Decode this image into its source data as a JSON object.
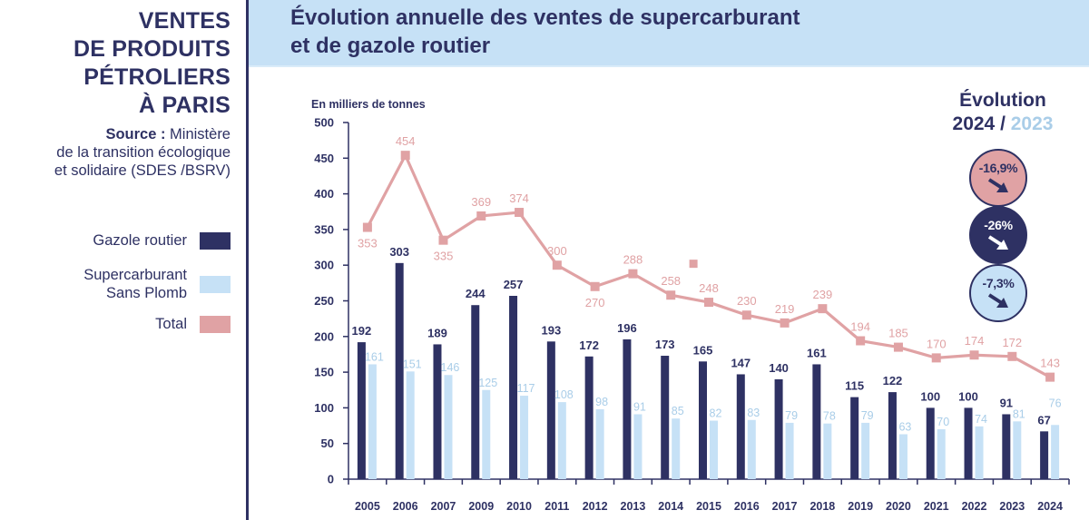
{
  "sidebar": {
    "title_lines": [
      "VENTES",
      "DE PRODUITS",
      "PÉTROLIERS",
      "À PARIS"
    ],
    "source_label": "Source :",
    "source_lines": [
      " Ministère",
      "de la transition écologique",
      "et solidaire (SDES /BSRV)"
    ],
    "legend": [
      {
        "label_lines": [
          "Gazole routier"
        ],
        "color": "#2e3163"
      },
      {
        "label_lines": [
          "Supercarburant",
          "Sans Plomb"
        ],
        "color": "#c6e1f6"
      },
      {
        "label_lines": [
          "Total"
        ],
        "color": "#e0a2a4"
      }
    ]
  },
  "header": {
    "title_lines": [
      "Évolution annuelle des ventes de supercarburant",
      "et de gazole routier"
    ]
  },
  "evolution": {
    "title": "Évolution",
    "year_current": "2024",
    "separator": " / ",
    "year_previous": "2023",
    "badges": [
      {
        "name": "total",
        "value": "-16,9%",
        "bg": "#e0a2a4",
        "text_color": "#2e3163",
        "arrow_color": "#2e3163",
        "icon": "arrow-down-right-icon"
      },
      {
        "name": "gazole",
        "value": "-26%",
        "bg": "#2e3163",
        "text_color": "#ffffff",
        "arrow_color": "#ffffff",
        "icon": "arrow-down-right-icon"
      },
      {
        "name": "supercarburant",
        "value": "-7,3%",
        "bg": "#c6e1f6",
        "text_color": "#2e3163",
        "arrow_color": "#2e3163",
        "icon": "arrow-down-right-icon"
      }
    ]
  },
  "colors": {
    "navy": "#2e3163",
    "light_blue": "#c6e1f6",
    "pink": "#e0a2a4",
    "light_blue_label": "#a9cde8"
  },
  "chart_data": {
    "type": "bar",
    "title": "Évolution annuelle des ventes de supercarburant et de gazole routier",
    "ylabel": "En milliers de tonnes",
    "xlabel": "",
    "ylim": [
      0,
      500
    ],
    "yticks": [
      0,
      50,
      100,
      150,
      200,
      250,
      300,
      350,
      400,
      450,
      500
    ],
    "grid": false,
    "legend_position": "left-sidebar",
    "categories": [
      "2005",
      "2006",
      "2007",
      "2009",
      "2010",
      "2011",
      "2012",
      "2013",
      "2014",
      "2015",
      "2016",
      "2017",
      "2018",
      "2019",
      "2020",
      "2021",
      "2022",
      "2023",
      "2024"
    ],
    "series": [
      {
        "name": "Gazole routier",
        "type": "bar",
        "color": "#2e3163",
        "values": [
          192,
          303,
          189,
          244,
          257,
          193,
          172,
          196,
          173,
          165,
          147,
          140,
          161,
          115,
          122,
          100,
          100,
          91,
          67
        ]
      },
      {
        "name": "Supercarburant Sans Plomb",
        "type": "bar",
        "color": "#c6e1f6",
        "values": [
          161,
          151,
          146,
          125,
          117,
          108,
          98,
          91,
          85,
          82,
          83,
          79,
          78,
          79,
          63,
          70,
          74,
          81,
          76
        ]
      },
      {
        "name": "Total",
        "type": "line",
        "color": "#e0a2a4",
        "values": [
          353,
          454,
          335,
          369,
          374,
          300,
          270,
          288,
          258,
          248,
          230,
          219,
          239,
          194,
          185,
          170,
          174,
          172,
          143
        ],
        "label_position": [
          "below",
          "above",
          "below",
          "above",
          "above",
          "above",
          "below",
          "above",
          "above",
          "above",
          "above",
          "above",
          "above",
          "above",
          "above",
          "above",
          "above",
          "above",
          "above"
        ]
      }
    ],
    "extra_marker": {
      "series": "Total",
      "between": [
        "2014",
        "2015"
      ],
      "value": 302
    }
  }
}
